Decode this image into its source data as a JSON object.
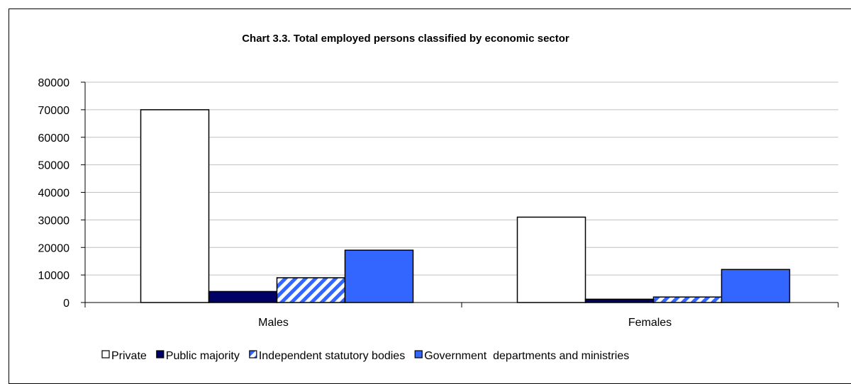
{
  "chart_data": {
    "type": "bar",
    "title": "Chart 3.3. Total employed persons classified by economic sector",
    "xlabel": "",
    "ylabel": "",
    "ylim": [
      0,
      80000
    ],
    "yticks": [
      0,
      10000,
      20000,
      30000,
      40000,
      50000,
      60000,
      70000,
      80000
    ],
    "categories": [
      "Males",
      "Females"
    ],
    "grid": true,
    "legend_position": "bottom",
    "series": [
      {
        "name": "Private",
        "values": [
          70000,
          31000
        ],
        "color": "#ffffff",
        "pattern": "solid"
      },
      {
        "name": "Public majority",
        "values": [
          4000,
          1200
        ],
        "color": "#000066",
        "pattern": "solid"
      },
      {
        "name": "Independent statutory bodies",
        "values": [
          9000,
          2000
        ],
        "color": "#3366ff",
        "pattern": "diagonal-stripes"
      },
      {
        "name": "Government  departments and ministries",
        "values": [
          19000,
          12000
        ],
        "color": "#3366ff",
        "pattern": "solid"
      }
    ]
  }
}
